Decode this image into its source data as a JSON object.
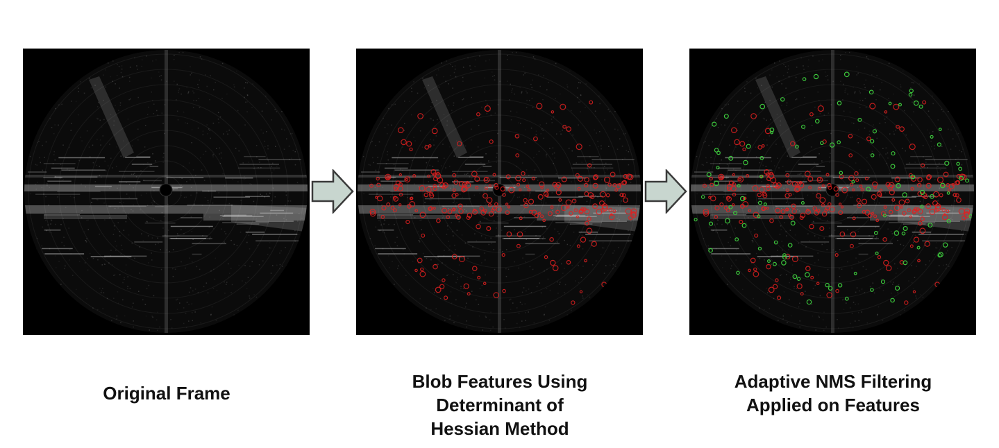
{
  "panels": [
    {
      "caption": "Original Frame",
      "overlay": "none"
    },
    {
      "caption": "Blob Features Using\nDeterminant of\nHessian Method",
      "overlay": "red-blobs"
    },
    {
      "caption": "Adaptive NMS Filtering\nApplied on Features",
      "overlay": "red-and-green-blobs"
    }
  ],
  "colors": {
    "background": "#ffffff",
    "frame": "#000000",
    "blob_feature": "#e02020",
    "nms_feature": "#3cc63c",
    "arrow_fill": "#c8d6cf",
    "arrow_stroke": "#3a3a3a",
    "caption_text": "#111111"
  },
  "icons": {
    "flow_arrow": "right-arrow-icon"
  }
}
